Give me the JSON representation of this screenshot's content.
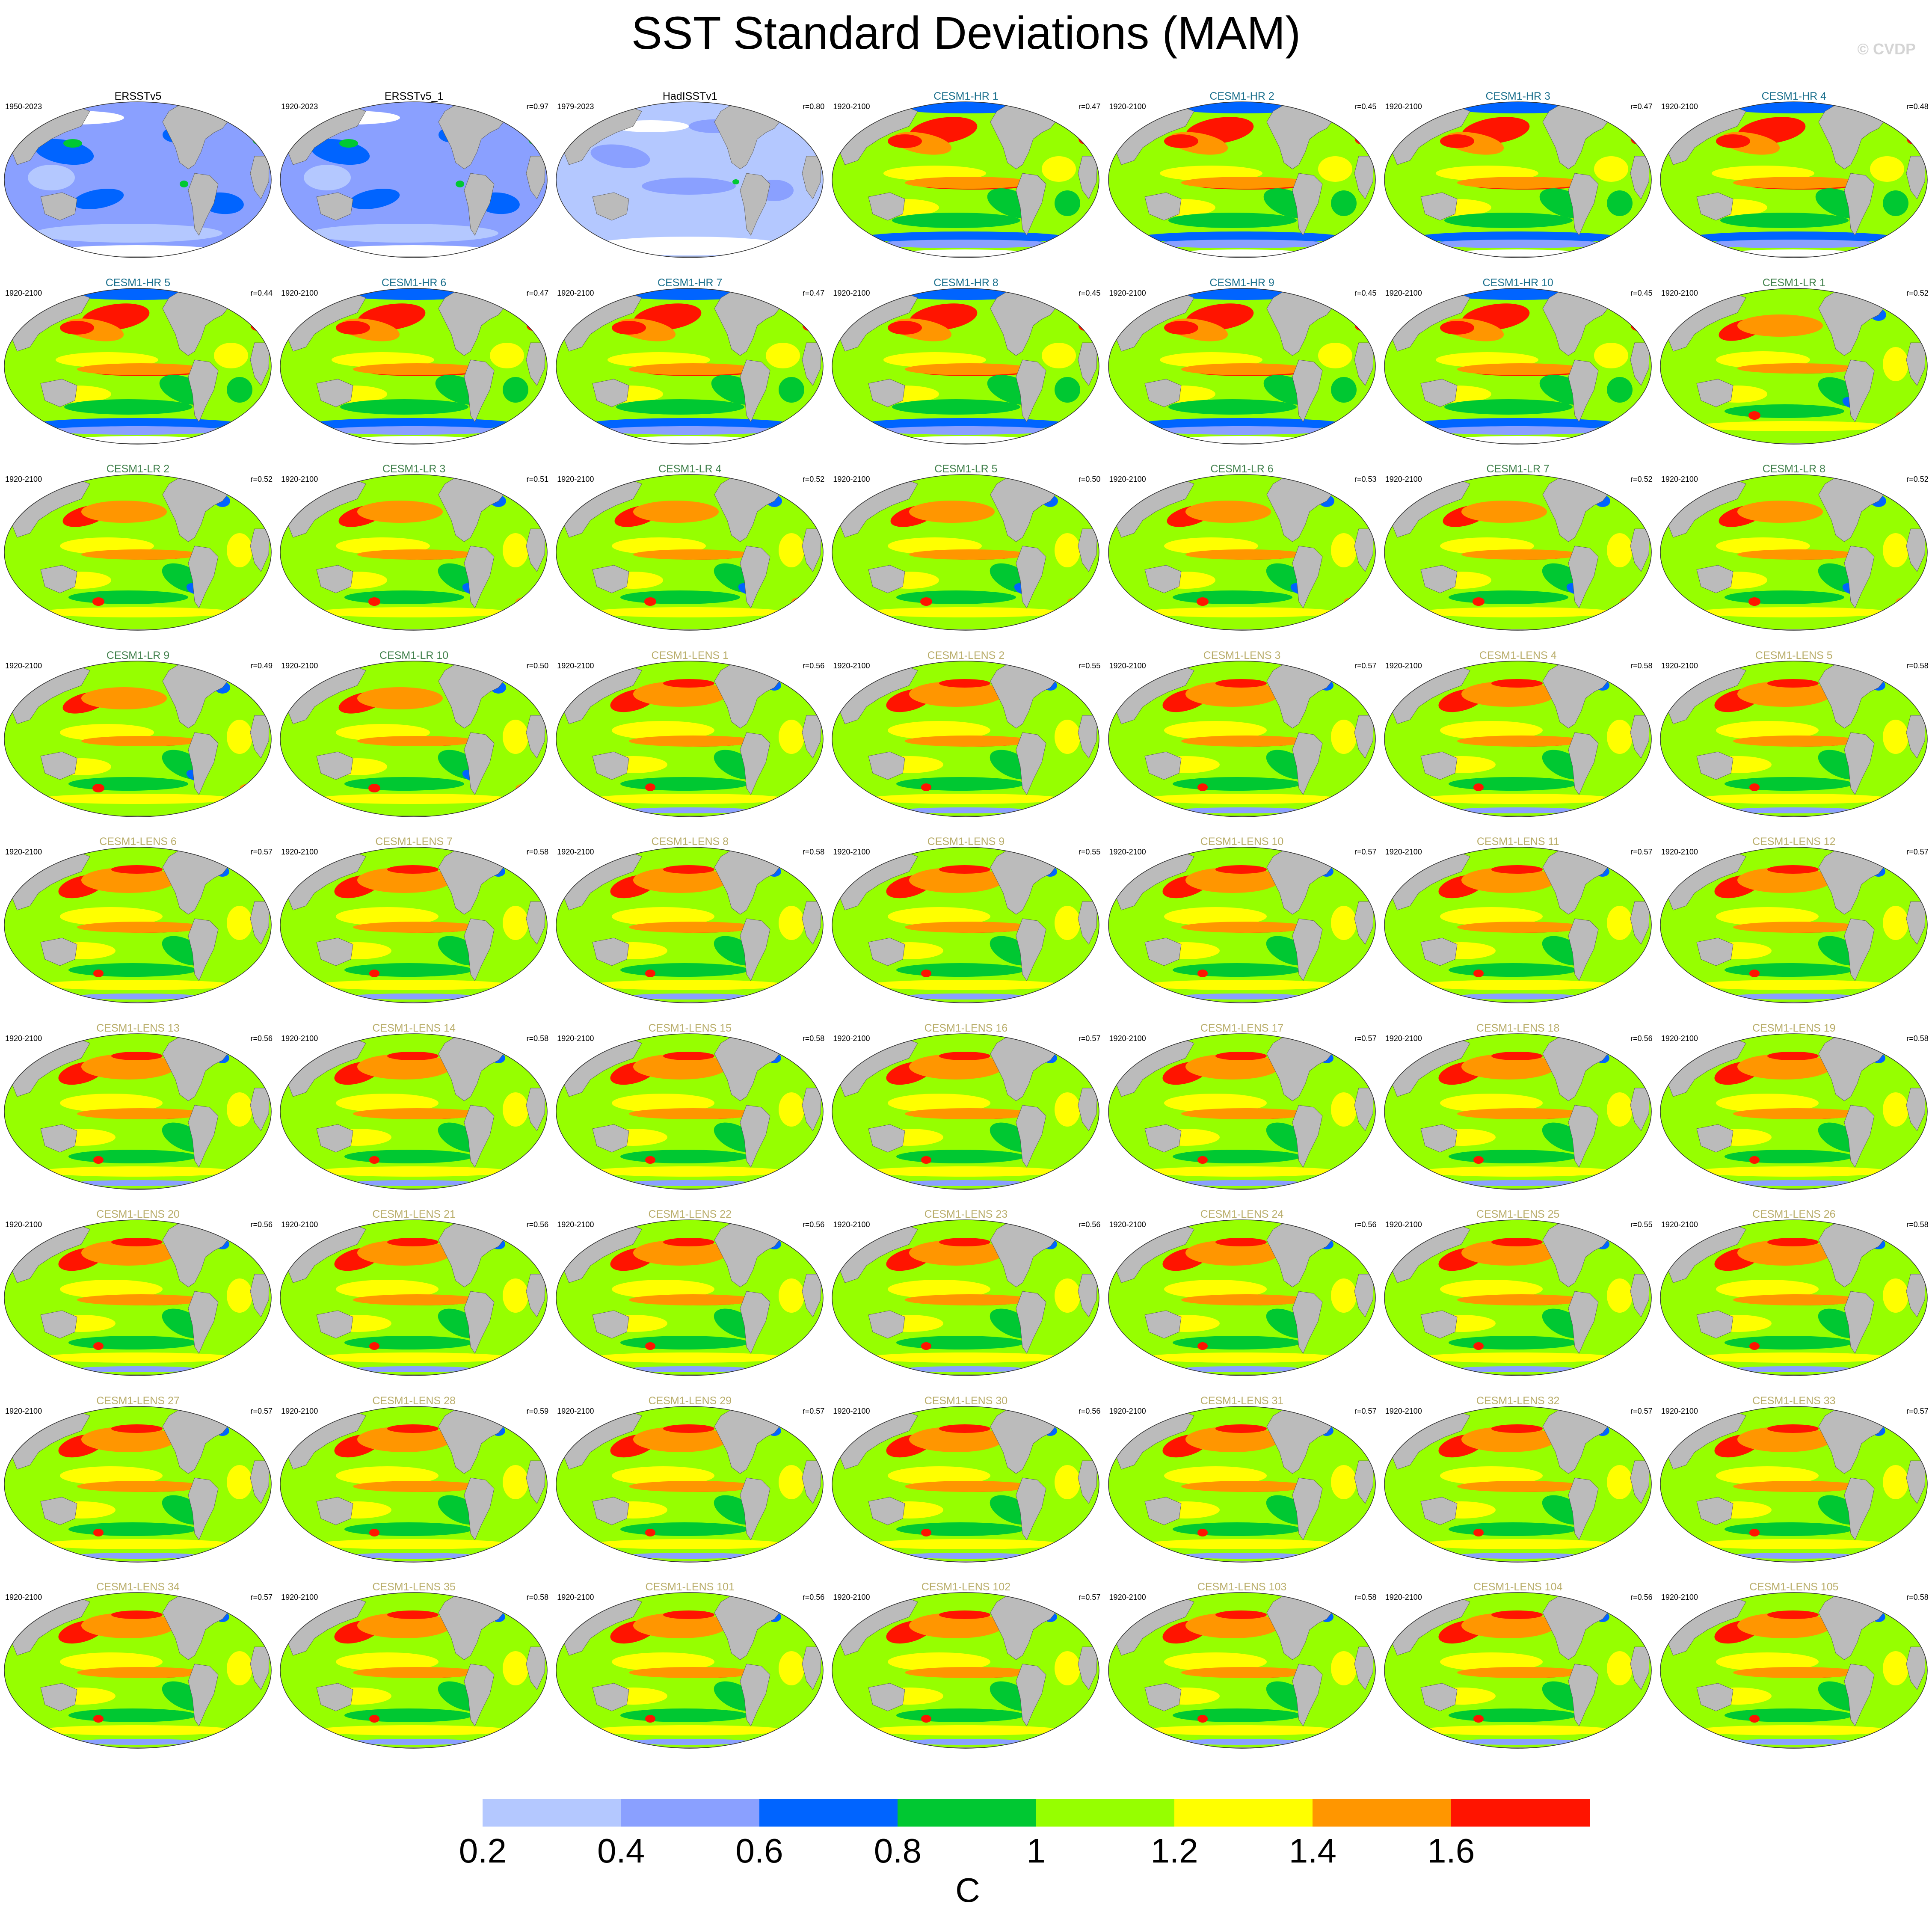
{
  "title": "SST Standard Deviations (MAM)",
  "watermark": "© CVDP",
  "colorbar": {
    "unit": "C",
    "colors": [
      "#ffffff",
      "#b4c8ff",
      "#8aa0ff",
      "#0064ff",
      "#00c832",
      "#96ff00",
      "#ffff00",
      "#ff9600",
      "#ff1400"
    ],
    "tick_labels": [
      "0.2",
      "0.4",
      "0.6",
      "0.8",
      "1",
      "1.2",
      "1.4",
      "1.6"
    ]
  },
  "palette": {
    "land": "#bbbbbb",
    "obs_title": "#000000",
    "hr_title": "#1a6f8c",
    "lr_title": "#3f7f4a",
    "lens_title": "#b9ad6a"
  },
  "panels": [
    {
      "title": "ERSSTv5",
      "period": "1950-2023",
      "corr": "",
      "group": "obs"
    },
    {
      "title": "ERSSTv5_1",
      "period": "1920-2023",
      "corr": "r=0.97",
      "group": "obs"
    },
    {
      "title": "HadISSTv1",
      "period": "1979-2023",
      "corr": "r=0.80",
      "group": "obs2"
    },
    {
      "title": "CESM1-HR 1",
      "period": "1920-2100",
      "corr": "r=0.47",
      "group": "hr"
    },
    {
      "title": "CESM1-HR 2",
      "period": "1920-2100",
      "corr": "r=0.45",
      "group": "hr"
    },
    {
      "title": "CESM1-HR 3",
      "period": "1920-2100",
      "corr": "r=0.47",
      "group": "hr"
    },
    {
      "title": "CESM1-HR 4",
      "period": "1920-2100",
      "corr": "r=0.48",
      "group": "hr"
    },
    {
      "title": "CESM1-HR 5",
      "period": "1920-2100",
      "corr": "r=0.44",
      "group": "hr"
    },
    {
      "title": "CESM1-HR 6",
      "period": "1920-2100",
      "corr": "r=0.47",
      "group": "hr"
    },
    {
      "title": "CESM1-HR 7",
      "period": "1920-2100",
      "corr": "r=0.47",
      "group": "hr"
    },
    {
      "title": "CESM1-HR 8",
      "period": "1920-2100",
      "corr": "r=0.45",
      "group": "hr"
    },
    {
      "title": "CESM1-HR 9",
      "period": "1920-2100",
      "corr": "r=0.45",
      "group": "hr"
    },
    {
      "title": "CESM1-HR 10",
      "period": "1920-2100",
      "corr": "r=0.45",
      "group": "hr"
    },
    {
      "title": "CESM1-LR 1",
      "period": "1920-2100",
      "corr": "r=0.52",
      "group": "lr"
    },
    {
      "title": "CESM1-LR 2",
      "period": "1920-2100",
      "corr": "r=0.52",
      "group": "lr"
    },
    {
      "title": "CESM1-LR 3",
      "period": "1920-2100",
      "corr": "r=0.51",
      "group": "lr"
    },
    {
      "title": "CESM1-LR 4",
      "period": "1920-2100",
      "corr": "r=0.52",
      "group": "lr"
    },
    {
      "title": "CESM1-LR 5",
      "period": "1920-2100",
      "corr": "r=0.50",
      "group": "lr"
    },
    {
      "title": "CESM1-LR 6",
      "period": "1920-2100",
      "corr": "r=0.53",
      "group": "lr"
    },
    {
      "title": "CESM1-LR 7",
      "period": "1920-2100",
      "corr": "r=0.52",
      "group": "lr"
    },
    {
      "title": "CESM1-LR 8",
      "period": "1920-2100",
      "corr": "r=0.52",
      "group": "lr"
    },
    {
      "title": "CESM1-LR 9",
      "period": "1920-2100",
      "corr": "r=0.49",
      "group": "lr"
    },
    {
      "title": "CESM1-LR 10",
      "period": "1920-2100",
      "corr": "r=0.50",
      "group": "lr"
    },
    {
      "title": "CESM1-LENS 1",
      "period": "1920-2100",
      "corr": "r=0.56",
      "group": "lens"
    },
    {
      "title": "CESM1-LENS 2",
      "period": "1920-2100",
      "corr": "r=0.55",
      "group": "lens"
    },
    {
      "title": "CESM1-LENS 3",
      "period": "1920-2100",
      "corr": "r=0.57",
      "group": "lens"
    },
    {
      "title": "CESM1-LENS 4",
      "period": "1920-2100",
      "corr": "r=0.58",
      "group": "lens"
    },
    {
      "title": "CESM1-LENS 5",
      "period": "1920-2100",
      "corr": "r=0.58",
      "group": "lens"
    },
    {
      "title": "CESM1-LENS 6",
      "period": "1920-2100",
      "corr": "r=0.57",
      "group": "lens"
    },
    {
      "title": "CESM1-LENS 7",
      "period": "1920-2100",
      "corr": "r=0.58",
      "group": "lens"
    },
    {
      "title": "CESM1-LENS 8",
      "period": "1920-2100",
      "corr": "r=0.58",
      "group": "lens"
    },
    {
      "title": "CESM1-LENS 9",
      "period": "1920-2100",
      "corr": "r=0.55",
      "group": "lens"
    },
    {
      "title": "CESM1-LENS 10",
      "period": "1920-2100",
      "corr": "r=0.57",
      "group": "lens"
    },
    {
      "title": "CESM1-LENS 11",
      "period": "1920-2100",
      "corr": "r=0.57",
      "group": "lens"
    },
    {
      "title": "CESM1-LENS 12",
      "period": "1920-2100",
      "corr": "r=0.57",
      "group": "lens"
    },
    {
      "title": "CESM1-LENS 13",
      "period": "1920-2100",
      "corr": "r=0.56",
      "group": "lens"
    },
    {
      "title": "CESM1-LENS 14",
      "period": "1920-2100",
      "corr": "r=0.58",
      "group": "lens"
    },
    {
      "title": "CESM1-LENS 15",
      "period": "1920-2100",
      "corr": "r=0.58",
      "group": "lens"
    },
    {
      "title": "CESM1-LENS 16",
      "period": "1920-2100",
      "corr": "r=0.57",
      "group": "lens"
    },
    {
      "title": "CESM1-LENS 17",
      "period": "1920-2100",
      "corr": "r=0.57",
      "group": "lens"
    },
    {
      "title": "CESM1-LENS 18",
      "period": "1920-2100",
      "corr": "r=0.56",
      "group": "lens"
    },
    {
      "title": "CESM1-LENS 19",
      "period": "1920-2100",
      "corr": "r=0.58",
      "group": "lens"
    },
    {
      "title": "CESM1-LENS 20",
      "period": "1920-2100",
      "corr": "r=0.56",
      "group": "lens"
    },
    {
      "title": "CESM1-LENS 21",
      "period": "1920-2100",
      "corr": "r=0.56",
      "group": "lens"
    },
    {
      "title": "CESM1-LENS 22",
      "period": "1920-2100",
      "corr": "r=0.56",
      "group": "lens"
    },
    {
      "title": "CESM1-LENS 23",
      "period": "1920-2100",
      "corr": "r=0.56",
      "group": "lens"
    },
    {
      "title": "CESM1-LENS 24",
      "period": "1920-2100",
      "corr": "r=0.56",
      "group": "lens"
    },
    {
      "title": "CESM1-LENS 25",
      "period": "1920-2100",
      "corr": "r=0.55",
      "group": "lens"
    },
    {
      "title": "CESM1-LENS 26",
      "period": "1920-2100",
      "corr": "r=0.58",
      "group": "lens"
    },
    {
      "title": "CESM1-LENS 27",
      "period": "1920-2100",
      "corr": "r=0.57",
      "group": "lens"
    },
    {
      "title": "CESM1-LENS 28",
      "period": "1920-2100",
      "corr": "r=0.59",
      "group": "lens"
    },
    {
      "title": "CESM1-LENS 29",
      "period": "1920-2100",
      "corr": "r=0.57",
      "group": "lens"
    },
    {
      "title": "CESM1-LENS 30",
      "period": "1920-2100",
      "corr": "r=0.56",
      "group": "lens"
    },
    {
      "title": "CESM1-LENS 31",
      "period": "1920-2100",
      "corr": "r=0.57",
      "group": "lens"
    },
    {
      "title": "CESM1-LENS 32",
      "period": "1920-2100",
      "corr": "r=0.57",
      "group": "lens"
    },
    {
      "title": "CESM1-LENS 33",
      "period": "1920-2100",
      "corr": "r=0.57",
      "group": "lens"
    },
    {
      "title": "CESM1-LENS 34",
      "period": "1920-2100",
      "corr": "r=0.57",
      "group": "lens"
    },
    {
      "title": "CESM1-LENS 35",
      "period": "1920-2100",
      "corr": "r=0.58",
      "group": "lens"
    },
    {
      "title": "CESM1-LENS 101",
      "period": "1920-2100",
      "corr": "r=0.56",
      "group": "lens"
    },
    {
      "title": "CESM1-LENS 102",
      "period": "1920-2100",
      "corr": "r=0.57",
      "group": "lens"
    },
    {
      "title": "CESM1-LENS 103",
      "period": "1920-2100",
      "corr": "r=0.58",
      "group": "lens"
    },
    {
      "title": "CESM1-LENS 104",
      "period": "1920-2100",
      "corr": "r=0.56",
      "group": "lens"
    },
    {
      "title": "CESM1-LENS 105",
      "period": "1920-2100",
      "corr": "r=0.58",
      "group": "lens"
    }
  ]
}
